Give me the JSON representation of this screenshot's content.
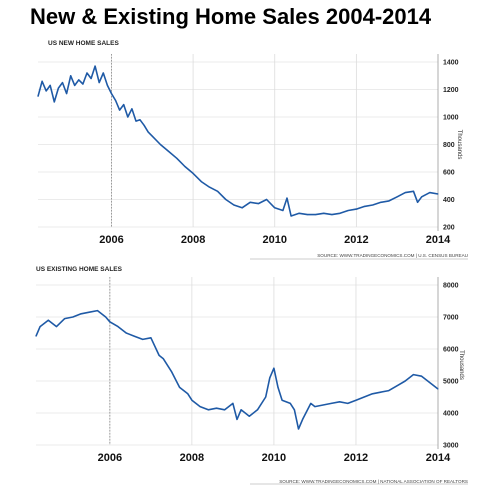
{
  "page_title": "New & Existing Home Sales 2004-2014",
  "chart_data": [
    {
      "type": "line",
      "title": "US NEW HOME SALES",
      "ylabel": "Thousands",
      "source": "SOURCE: WWW.TRADINGECONOMICS.COM | U.S. CENSUS BUREAU",
      "xlim": [
        2004.2,
        2014.0
      ],
      "ylim": [
        200,
        1400
      ],
      "x_ticks": [
        "2006",
        "2008",
        "2010",
        "2012",
        "2014"
      ],
      "y_ticks": [
        "1400",
        "1200",
        "1000",
        "800",
        "600",
        "400",
        "200"
      ],
      "marker_x": 2006,
      "grid": true,
      "series": [
        {
          "color": "#1f5aa6",
          "x": [
            2004.2,
            2004.3,
            2004.4,
            2004.5,
            2004.6,
            2004.7,
            2004.8,
            2004.9,
            2005.0,
            2005.1,
            2005.2,
            2005.3,
            2005.4,
            2005.5,
            2005.6,
            2005.7,
            2005.8,
            2005.9,
            2006.0,
            2006.1,
            2006.2,
            2006.3,
            2006.4,
            2006.5,
            2006.6,
            2006.7,
            2006.8,
            2006.9,
            2007.0,
            2007.2,
            2007.4,
            2007.6,
            2007.8,
            2008.0,
            2008.2,
            2008.4,
            2008.6,
            2008.8,
            2009.0,
            2009.2,
            2009.4,
            2009.6,
            2009.8,
            2010.0,
            2010.2,
            2010.3,
            2010.4,
            2010.6,
            2010.8,
            2011.0,
            2011.2,
            2011.4,
            2011.6,
            2011.8,
            2012.0,
            2012.2,
            2012.4,
            2012.6,
            2012.8,
            2013.0,
            2013.2,
            2013.4,
            2013.5,
            2013.6,
            2013.8,
            2014.0
          ],
          "values": [
            1150,
            1260,
            1190,
            1230,
            1110,
            1210,
            1250,
            1170,
            1300,
            1230,
            1270,
            1240,
            1320,
            1280,
            1370,
            1250,
            1320,
            1230,
            1170,
            1120,
            1050,
            1090,
            1000,
            1060,
            970,
            980,
            940,
            890,
            860,
            800,
            750,
            700,
            640,
            590,
            530,
            490,
            460,
            400,
            360,
            340,
            380,
            370,
            400,
            340,
            320,
            410,
            280,
            300,
            290,
            290,
            300,
            290,
            300,
            320,
            330,
            350,
            360,
            380,
            390,
            420,
            450,
            460,
            380,
            420,
            450,
            440
          ]
        }
      ]
    },
    {
      "type": "line",
      "title": "US EXISTING HOME SALES",
      "ylabel": "Thousands",
      "source": "SOURCE: WWW.TRADINGECONOMICS.COM | NATIONAL ASSOCIATION OF REALTORS",
      "xlim": [
        2004.2,
        2014.0
      ],
      "ylim": [
        3000,
        8000
      ],
      "x_ticks": [
        "2006",
        "2008",
        "2010",
        "2012",
        "2014"
      ],
      "y_ticks": [
        "8000",
        "7000",
        "6000",
        "5000",
        "4000",
        "3000"
      ],
      "marker_x": 2006,
      "grid": true,
      "series": [
        {
          "color": "#1f5aa6",
          "x": [
            2004.2,
            2004.3,
            2004.5,
            2004.7,
            2004.9,
            2005.1,
            2005.3,
            2005.5,
            2005.7,
            2005.9,
            2006.0,
            2006.2,
            2006.4,
            2006.6,
            2006.8,
            2007.0,
            2007.2,
            2007.3,
            2007.5,
            2007.7,
            2007.9,
            2008.0,
            2008.2,
            2008.4,
            2008.6,
            2008.8,
            2009.0,
            2009.1,
            2009.2,
            2009.4,
            2009.6,
            2009.8,
            2009.9,
            2010.0,
            2010.1,
            2010.2,
            2010.4,
            2010.5,
            2010.6,
            2010.7,
            2010.9,
            2011.0,
            2011.2,
            2011.4,
            2011.6,
            2011.8,
            2012.0,
            2012.2,
            2012.4,
            2012.6,
            2012.8,
            2013.0,
            2013.2,
            2013.4,
            2013.6,
            2013.8,
            2014.0
          ],
          "values": [
            6400,
            6700,
            6900,
            6700,
            6950,
            7000,
            7100,
            7150,
            7200,
            7000,
            6850,
            6700,
            6500,
            6400,
            6300,
            6350,
            5800,
            5700,
            5300,
            4800,
            4600,
            4400,
            4200,
            4100,
            4150,
            4100,
            4300,
            3800,
            4100,
            3900,
            4100,
            4500,
            5100,
            5400,
            4800,
            4400,
            4300,
            4100,
            3500,
            3800,
            4300,
            4200,
            4250,
            4300,
            4350,
            4300,
            4400,
            4500,
            4600,
            4650,
            4700,
            4850,
            5000,
            5200,
            5150,
            4950,
            4750
          ]
        }
      ]
    }
  ]
}
